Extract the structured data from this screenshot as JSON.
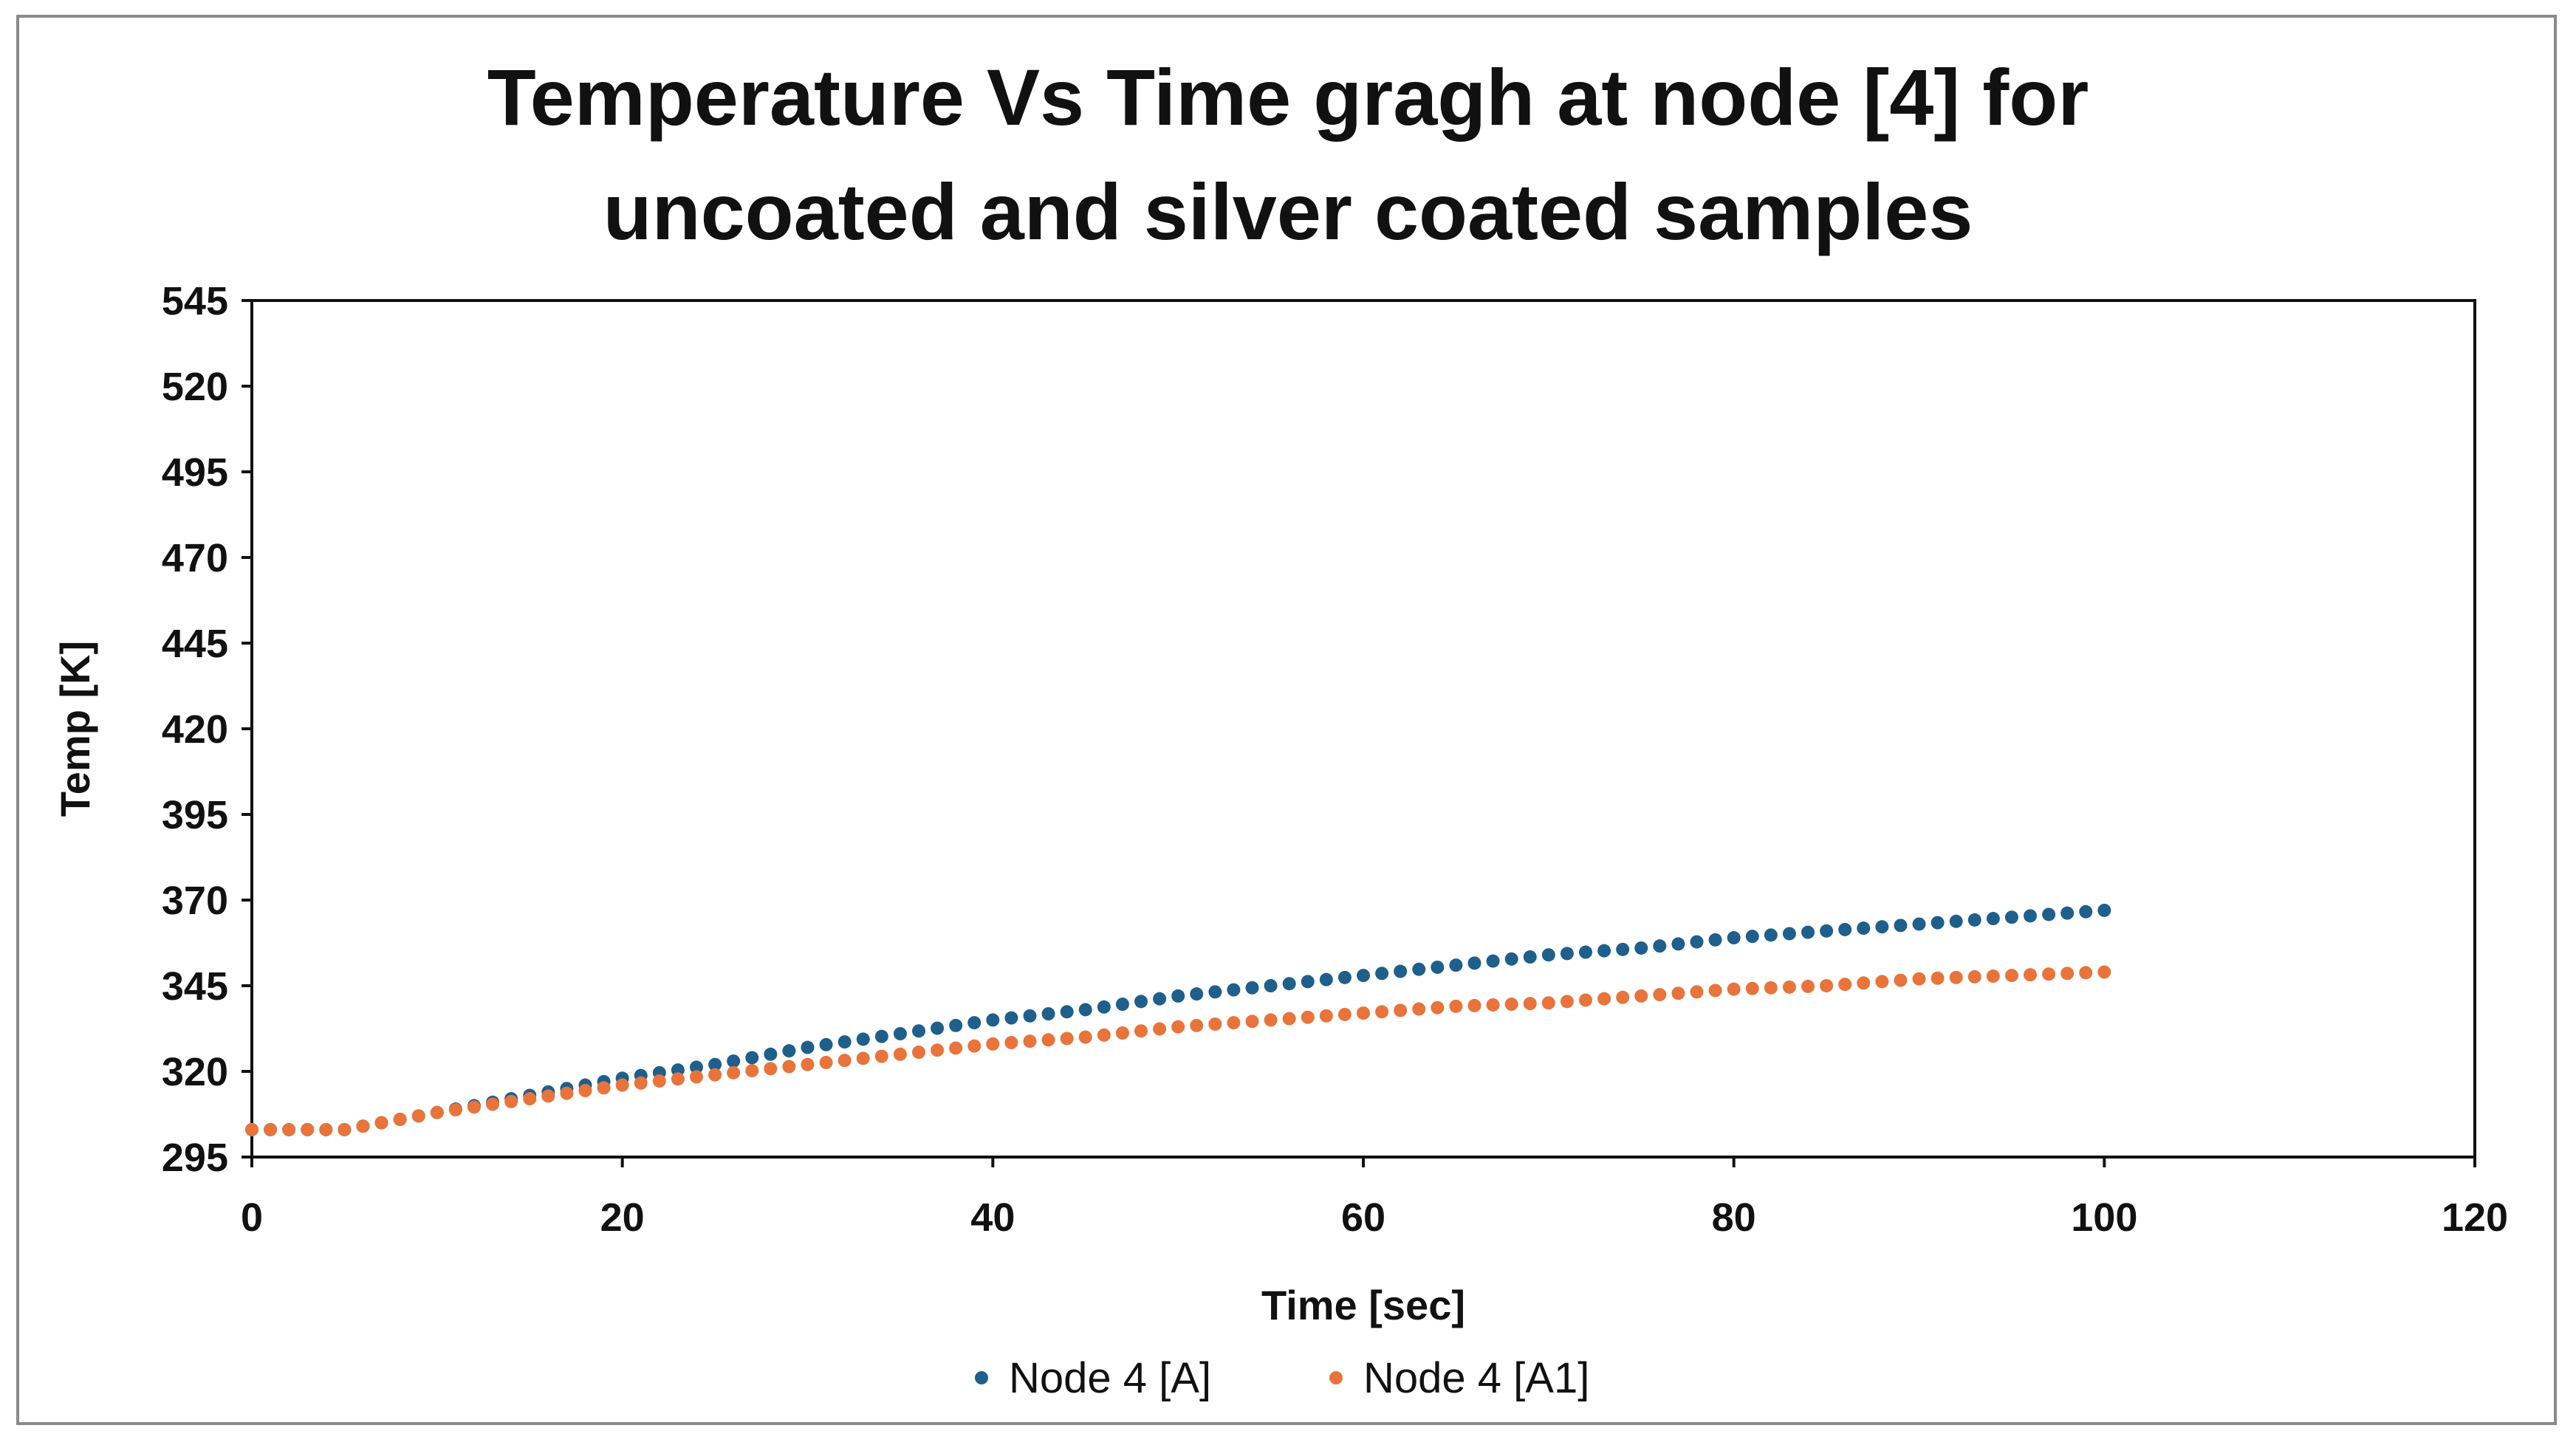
{
  "chart_data": {
    "type": "scatter",
    "title_lines": [
      "Temperature Vs Time gragh at node [4] for",
      "uncoated and silver coated samples"
    ],
    "xlabel": "Time [sec]",
    "ylabel": "Temp [K]",
    "xlim": [
      0,
      120
    ],
    "ylim": [
      295,
      545
    ],
    "x_ticks": [
      0,
      20,
      40,
      60,
      80,
      100,
      120
    ],
    "y_ticks": [
      295,
      320,
      345,
      370,
      395,
      420,
      445,
      470,
      495,
      520,
      545
    ],
    "grid": false,
    "legend_position": "bottom",
    "series": [
      {
        "name": "Node 4 [A]",
        "color": "#1f5f8b",
        "x": [
          0,
          5,
          10,
          15,
          20,
          25,
          30,
          35,
          40,
          45,
          50,
          55,
          60,
          65,
          70,
          75,
          80,
          85,
          90,
          95,
          100
        ],
        "values": [
          303,
          303,
          308,
          313,
          318,
          322,
          327,
          331,
          335,
          338,
          342,
          345,
          348,
          351,
          354,
          356,
          359,
          361,
          363,
          365,
          367
        ]
      },
      {
        "name": "Node 4 [A1]",
        "color": "#e8743b",
        "x": [
          0,
          5,
          10,
          15,
          20,
          25,
          30,
          35,
          40,
          45,
          50,
          55,
          60,
          65,
          70,
          75,
          80,
          85,
          90,
          95,
          100
        ],
        "values": [
          303,
          303,
          308,
          312,
          316,
          319,
          322,
          325,
          328,
          330,
          333,
          335,
          337,
          339,
          340,
          342,
          344,
          345,
          347,
          348,
          349
        ]
      }
    ]
  }
}
